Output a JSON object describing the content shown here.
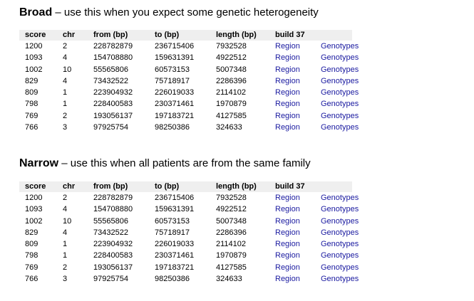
{
  "columns": [
    "score",
    "chr",
    "from (bp)",
    "to (bp)",
    "length (bp)",
    "build 37",
    ""
  ],
  "broad": {
    "title_strong": "Broad",
    "title_rest": " – use this when you expect some genetic heterogeneity",
    "rows": [
      {
        "score": "1200",
        "chr": "2",
        "from": "228782879",
        "to": "236715406",
        "length": "7932528",
        "region": "Region",
        "genotypes": "Genotypes"
      },
      {
        "score": "1093",
        "chr": "4",
        "from": "154708880",
        "to": "159631391",
        "length": "4922512",
        "region": "Region",
        "genotypes": "Genotypes"
      },
      {
        "score": "1002",
        "chr": "10",
        "from": "55565806",
        "to": "60573153",
        "length": "5007348",
        "region": "Region",
        "genotypes": "Genotypes"
      },
      {
        "score": "829",
        "chr": "4",
        "from": "73432522",
        "to": "75718917",
        "length": "2286396",
        "region": "Region",
        "genotypes": "Genotypes"
      },
      {
        "score": "809",
        "chr": "1",
        "from": "223904932",
        "to": "226019033",
        "length": "2114102",
        "region": "Region",
        "genotypes": "Genotypes"
      },
      {
        "score": "798",
        "chr": "1",
        "from": "228400583",
        "to": "230371461",
        "length": "1970879",
        "region": "Region",
        "genotypes": "Genotypes"
      },
      {
        "score": "769",
        "chr": "2",
        "from": "193056137",
        "to": "197183721",
        "length": "4127585",
        "region": "Region",
        "genotypes": "Genotypes"
      },
      {
        "score": "766",
        "chr": "3",
        "from": "97925754",
        "to": "98250386",
        "length": "324633",
        "region": "Region",
        "genotypes": "Genotypes"
      }
    ]
  },
  "narrow": {
    "title_strong": "Narrow",
    "title_rest": " – use this when all patients are from the same family",
    "rows": [
      {
        "score": "1200",
        "chr": "2",
        "from": "228782879",
        "to": "236715406",
        "length": "7932528",
        "region": "Region",
        "genotypes": "Genotypes"
      },
      {
        "score": "1093",
        "chr": "4",
        "from": "154708880",
        "to": "159631391",
        "length": "4922512",
        "region": "Region",
        "genotypes": "Genotypes"
      },
      {
        "score": "1002",
        "chr": "10",
        "from": "55565806",
        "to": "60573153",
        "length": "5007348",
        "region": "Region",
        "genotypes": "Genotypes"
      },
      {
        "score": "829",
        "chr": "4",
        "from": "73432522",
        "to": "75718917",
        "length": "2286396",
        "region": "Region",
        "genotypes": "Genotypes"
      },
      {
        "score": "809",
        "chr": "1",
        "from": "223904932",
        "to": "226019033",
        "length": "2114102",
        "region": "Region",
        "genotypes": "Genotypes"
      },
      {
        "score": "798",
        "chr": "1",
        "from": "228400583",
        "to": "230371461",
        "length": "1970879",
        "region": "Region",
        "genotypes": "Genotypes"
      },
      {
        "score": "769",
        "chr": "2",
        "from": "193056137",
        "to": "197183721",
        "length": "4127585",
        "region": "Region",
        "genotypes": "Genotypes"
      },
      {
        "score": "766",
        "chr": "3",
        "from": "97925754",
        "to": "98250386",
        "length": "324633",
        "region": "Region",
        "genotypes": "Genotypes"
      }
    ]
  },
  "colors": {
    "link": "#1a1aa0",
    "header_bg": "#efefef"
  }
}
